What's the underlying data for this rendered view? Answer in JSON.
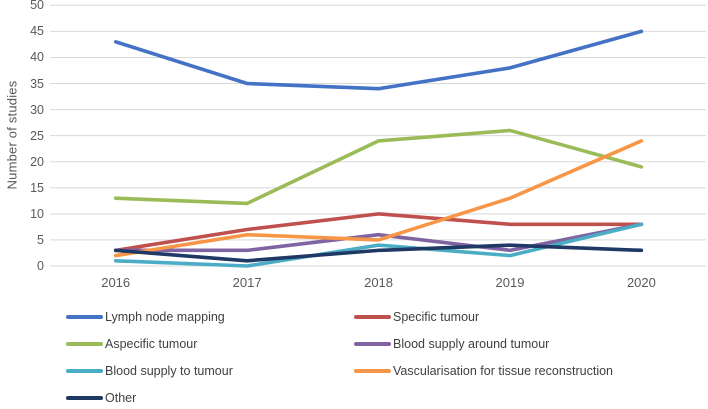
{
  "chart_data": {
    "type": "line",
    "title": "",
    "xlabel": "",
    "ylabel": "Number of studies",
    "x": [
      "2016",
      "2017",
      "2018",
      "2019",
      "2020"
    ],
    "ylim": [
      0,
      50
    ],
    "yticks": [
      0,
      5,
      10,
      15,
      20,
      25,
      30,
      35,
      40,
      45,
      50
    ],
    "grid": true,
    "gridline_color": "#d9d9d9",
    "axis_text_color": "#595959",
    "legend_position": "bottom-two-columns",
    "series": [
      {
        "name": "Lymph node mapping",
        "color": "#4472C4",
        "values": [
          43,
          35,
          34,
          38,
          45
        ]
      },
      {
        "name": "Specific tumour",
        "color": "#C0504D",
        "values": [
          3,
          7,
          10,
          8,
          8
        ]
      },
      {
        "name": "Aspecific tumour",
        "color": "#9BBB59",
        "values": [
          13,
          12,
          24,
          26,
          19
        ]
      },
      {
        "name": "Blood supply around tumour",
        "color": "#8064A2",
        "values": [
          3,
          3,
          6,
          3,
          8
        ]
      },
      {
        "name": "Blood supply to tumour",
        "color": "#4BACC6",
        "values": [
          1,
          0,
          4,
          2,
          8
        ]
      },
      {
        "name": "Vascularisation for tissue reconstruction",
        "color": "#F79646",
        "values": [
          2,
          6,
          5,
          13,
          24
        ]
      },
      {
        "name": "Other",
        "color": "#1F3864",
        "values": [
          3,
          1,
          3,
          4,
          3
        ]
      }
    ]
  }
}
